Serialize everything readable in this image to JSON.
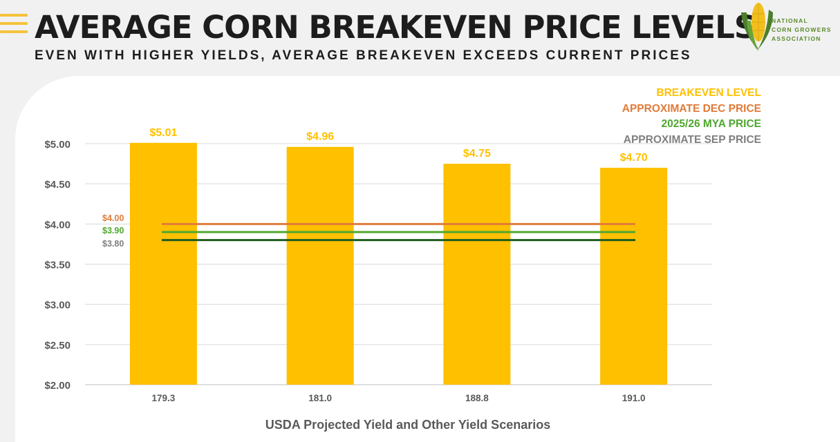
{
  "header": {
    "title": "AVERAGE CORN BREAKEVEN PRICE LEVELS",
    "subtitle": "EVEN WITH HIGHER YIELDS, AVERAGE BREAKEVEN EXCEEDS CURRENT PRICES"
  },
  "logo": {
    "lines": [
      "NATIONAL",
      "CORN GROWERS",
      "ASSOCIATION"
    ],
    "icon": "corn-cob-icon",
    "color": "#5a8a2c"
  },
  "colors": {
    "accent_stripes": "#f5c33b",
    "bar": "#ffc000",
    "dec_price": "#e07b39",
    "mya_price": "#4ea72e",
    "sep_price": "#7f7f7f",
    "sep_line": "#1e5c1e",
    "axis_text": "#595959"
  },
  "legend": [
    {
      "label": "BREAKEVEN LEVEL",
      "color": "#ffc000"
    },
    {
      "label": "APPROXIMATE DEC PRICE",
      "color": "#e07b39"
    },
    {
      "label": "2025/26 MYA PRICE",
      "color": "#4ea72e"
    },
    {
      "label": "APPROXIMATE SEP PRICE",
      "color": "#7f7f7f"
    }
  ],
  "chart_data": {
    "type": "bar",
    "title": "",
    "xlabel": "USDA Projected Yield and Other Yield Scenarios",
    "ylabel": "",
    "categories": [
      "179.3",
      "181.0",
      "188.8",
      "191.0"
    ],
    "series": [
      {
        "name": "BREAKEVEN LEVEL",
        "values": [
          5.01,
          4.96,
          4.75,
          4.7
        ],
        "labels": [
          "$5.01",
          "$4.96",
          "$4.75",
          "$4.70"
        ],
        "color": "#ffc000"
      }
    ],
    "reference_lines": [
      {
        "name": "APPROXIMATE DEC PRICE",
        "value": 4.0,
        "label": "$4.00",
        "color": "#e07b39",
        "label_color": "#e07b39"
      },
      {
        "name": "2025/26 MYA PRICE",
        "value": 3.9,
        "label": "$3.90",
        "color": "#4ea72e",
        "label_color": "#4ea72e"
      },
      {
        "name": "APPROXIMATE SEP PRICE",
        "value": 3.8,
        "label": "$3.80",
        "color": "#1e5c1e",
        "label_color": "#7f7f7f"
      }
    ],
    "ylim": [
      2.0,
      5.0
    ],
    "yticks": [
      2.0,
      2.5,
      3.0,
      3.5,
      4.0,
      4.5,
      5.0
    ],
    "ytick_labels": [
      "$2.00",
      "$2.50",
      "$3.00",
      "$3.50",
      "$4.00",
      "$4.50",
      "$5.00"
    ],
    "grid": true,
    "legend_position": "top-right"
  }
}
